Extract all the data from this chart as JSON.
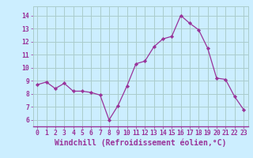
{
  "x": [
    0,
    1,
    2,
    3,
    4,
    5,
    6,
    7,
    8,
    9,
    10,
    11,
    12,
    13,
    14,
    15,
    16,
    17,
    18,
    19,
    20,
    21,
    22,
    23
  ],
  "y": [
    8.7,
    8.9,
    8.4,
    8.8,
    8.2,
    8.2,
    8.1,
    7.9,
    6.0,
    7.1,
    8.6,
    10.3,
    10.5,
    11.6,
    12.2,
    12.4,
    14.0,
    13.4,
    12.9,
    11.5,
    9.2,
    9.1,
    7.8,
    6.8
  ],
  "line_color": "#993399",
  "marker_color": "#993399",
  "bg_color": "#cceeff",
  "grid_color": "#aacccc",
  "ylabel_values": [
    6,
    7,
    8,
    9,
    10,
    11,
    12,
    13,
    14
  ],
  "xlabel_label": "Windchill (Refroidissement éolien,°C)",
  "ylim": [
    5.5,
    14.7
  ],
  "xlim": [
    -0.5,
    23.5
  ],
  "tick_color": "#993399",
  "tick_fontsize": 5.8,
  "xlabel_fontsize": 7.0
}
